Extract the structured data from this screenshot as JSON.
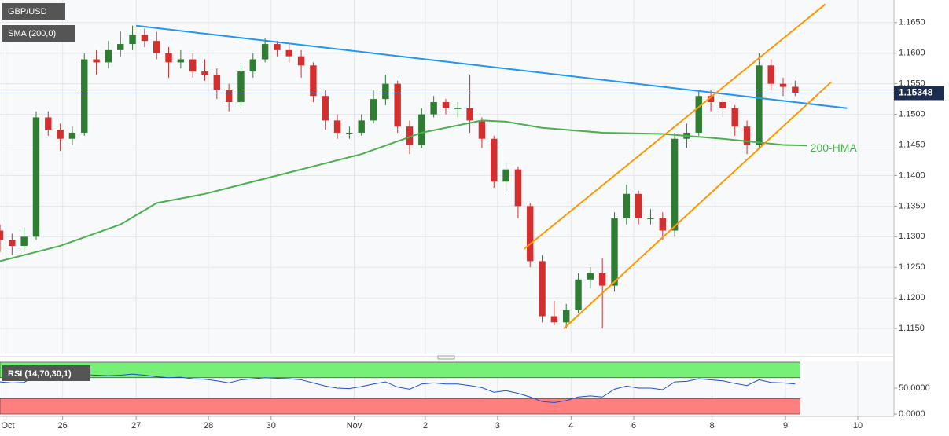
{
  "chart_data": [
    {
      "type": "candlestick",
      "symbol": "GBP/USD",
      "indicator_label": "SMA (200,0)",
      "up_color": "#2e7d32",
      "down_color": "#d32f2f",
      "xlim": [
        0,
        74.2
      ],
      "ylim": [
        1.1109,
        1.1687
      ],
      "xticks": [
        {
          "value": 0.5,
          "label": "Oct"
        },
        {
          "value": 5.2,
          "label": "26"
        },
        {
          "value": 11.3,
          "label": "27"
        },
        {
          "value": 17.3,
          "label": "28"
        },
        {
          "value": 22.5,
          "label": "30"
        },
        {
          "value": 29.4,
          "label": "Nov"
        },
        {
          "value": 35.3,
          "label": "2"
        },
        {
          "value": 41.3,
          "label": "3"
        },
        {
          "value": 47.4,
          "label": "4"
        },
        {
          "value": 52.6,
          "label": "6"
        },
        {
          "value": 59.1,
          "label": "8"
        },
        {
          "value": 65.2,
          "label": "9"
        },
        {
          "value": 71.2,
          "label": "10"
        }
      ],
      "yticks": [
        {
          "value": 1.115,
          "label": "1.1150"
        },
        {
          "value": 1.12,
          "label": "1.1200"
        },
        {
          "value": 1.125,
          "label": "1.1250"
        },
        {
          "value": 1.13,
          "label": "1.1300"
        },
        {
          "value": 1.135,
          "label": "1.1350"
        },
        {
          "value": 1.14,
          "label": "1.1400"
        },
        {
          "value": 1.145,
          "label": "1.1450"
        },
        {
          "value": 1.15,
          "label": "1.1500"
        },
        {
          "value": 1.155,
          "label": "1.1550"
        },
        {
          "value": 1.16,
          "label": "1.1600"
        },
        {
          "value": 1.165,
          "label": "1.1650"
        }
      ],
      "grid": true,
      "x": [
        0,
        1,
        2,
        3,
        4,
        5,
        6,
        7,
        8,
        9,
        10,
        11,
        12,
        13,
        14,
        15,
        16,
        17,
        18,
        19,
        20,
        21,
        22,
        23,
        24,
        25,
        26,
        27,
        28,
        29,
        30,
        31,
        32,
        33,
        34,
        35,
        36,
        37,
        38,
        39,
        40,
        41,
        42,
        43,
        44,
        45,
        46,
        47,
        48,
        49,
        50,
        51,
        52,
        53,
        54,
        55,
        56,
        57,
        58,
        59,
        60,
        61,
        62,
        63,
        64,
        65,
        66
      ],
      "open": [
        1.131,
        1.1295,
        1.1285,
        1.13,
        1.1495,
        1.1475,
        1.146,
        1.147,
        1.159,
        1.1585,
        1.1605,
        1.1615,
        1.163,
        1.162,
        1.16,
        1.1585,
        1.159,
        1.157,
        1.1565,
        1.154,
        1.152,
        1.157,
        1.159,
        1.1615,
        1.1605,
        1.1595,
        1.158,
        1.153,
        1.149,
        1.147,
        1.147,
        1.149,
        1.1525,
        1.155,
        1.148,
        1.145,
        1.15,
        1.152,
        1.151,
        1.151,
        1.149,
        1.146,
        1.139,
        1.141,
        1.135,
        1.126,
        1.117,
        1.116,
        1.118,
        1.123,
        1.124,
        1.122,
        1.133,
        1.137,
        1.133,
        1.133,
        1.131,
        1.146,
        1.147,
        1.153,
        1.152,
        1.151,
        1.148,
        1.145,
        1.158,
        1.155,
        1.1545
      ],
      "high": [
        1.132,
        1.1305,
        1.1315,
        1.1505,
        1.1505,
        1.1485,
        1.148,
        1.16,
        1.1605,
        1.162,
        1.1635,
        1.1645,
        1.164,
        1.1635,
        1.161,
        1.1605,
        1.16,
        1.159,
        1.1575,
        1.155,
        1.158,
        1.16,
        1.1625,
        1.162,
        1.1615,
        1.1605,
        1.1585,
        1.154,
        1.15,
        1.148,
        1.15,
        1.154,
        1.1565,
        1.1555,
        1.149,
        1.151,
        1.153,
        1.1525,
        1.152,
        1.1565,
        1.1495,
        1.1465,
        1.142,
        1.1415,
        1.1355,
        1.127,
        1.1195,
        1.119,
        1.124,
        1.125,
        1.1265,
        1.134,
        1.1385,
        1.1375,
        1.1345,
        1.134,
        1.147,
        1.1485,
        1.154,
        1.154,
        1.153,
        1.1515,
        1.149,
        1.16,
        1.159,
        1.156,
        1.1555
      ],
      "low": [
        1.1275,
        1.127,
        1.1275,
        1.1295,
        1.1465,
        1.144,
        1.145,
        1.1465,
        1.1565,
        1.1575,
        1.1595,
        1.1605,
        1.161,
        1.159,
        1.156,
        1.1575,
        1.156,
        1.1555,
        1.1525,
        1.1505,
        1.151,
        1.156,
        1.1585,
        1.1595,
        1.1585,
        1.156,
        1.152,
        1.1475,
        1.146,
        1.146,
        1.1465,
        1.1485,
        1.1515,
        1.147,
        1.1435,
        1.1445,
        1.1495,
        1.15,
        1.1495,
        1.147,
        1.1445,
        1.138,
        1.1375,
        1.133,
        1.125,
        1.116,
        1.1155,
        1.115,
        1.1175,
        1.1215,
        1.115,
        1.121,
        1.132,
        1.132,
        1.132,
        1.1295,
        1.13,
        1.1445,
        1.1465,
        1.1505,
        1.1495,
        1.1465,
        1.1435,
        1.1445,
        1.154,
        1.153,
        1.153
      ],
      "close": [
        1.1295,
        1.1285,
        1.13,
        1.1495,
        1.1475,
        1.146,
        1.147,
        1.159,
        1.1585,
        1.1605,
        1.1615,
        1.163,
        1.162,
        1.16,
        1.1585,
        1.159,
        1.157,
        1.1565,
        1.154,
        1.152,
        1.157,
        1.159,
        1.1615,
        1.1605,
        1.1595,
        1.158,
        1.153,
        1.149,
        1.147,
        1.147,
        1.149,
        1.1525,
        1.155,
        1.148,
        1.145,
        1.15,
        1.152,
        1.151,
        1.151,
        1.149,
        1.146,
        1.139,
        1.141,
        1.135,
        1.126,
        1.117,
        1.116,
        1.118,
        1.123,
        1.124,
        1.122,
        1.133,
        1.137,
        1.133,
        1.133,
        1.131,
        1.146,
        1.147,
        1.153,
        1.152,
        1.151,
        1.148,
        1.145,
        1.158,
        1.155,
        1.1545,
        1.1535
      ],
      "series": [
        {
          "name": "200-HMA",
          "color": "#4caf50",
          "x": [
            0,
            5,
            10,
            13,
            17,
            20,
            25,
            30,
            35,
            38,
            40,
            42,
            45,
            50,
            55,
            60,
            65,
            67
          ],
          "values": [
            1.126,
            1.1285,
            1.132,
            1.1355,
            1.137,
            1.1385,
            1.141,
            1.1435,
            1.147,
            1.1482,
            1.149,
            1.1488,
            1.1478,
            1.147,
            1.1468,
            1.146,
            1.145,
            1.1449
          ]
        }
      ],
      "lines": [
        {
          "color": "#2196f3",
          "x": [
            11.3,
            70.3
          ],
          "y": [
            1.1645,
            1.151
          ]
        },
        {
          "color": "#ff9800",
          "x": [
            43.5,
            68.5
          ],
          "y": [
            1.128,
            1.168
          ]
        },
        {
          "color": "#ff9800",
          "x": [
            46.8,
            69.0
          ],
          "y": [
            1.115,
            1.1553
          ]
        }
      ],
      "last": {
        "value": 1.15348,
        "label": "1.15348"
      }
    },
    {
      "type": "line",
      "title": "RSI (14,70,30,1)",
      "color": "#1e50c8",
      "xlim": [
        0,
        74.2
      ],
      "ylim": [
        -4.5,
        101.5
      ],
      "yticks": [
        {
          "value": 0,
          "label": "0.0000"
        },
        {
          "value": 50,
          "label": "50.0000"
        }
      ],
      "bands": [
        {
          "from": 70,
          "to": 100,
          "color": "#76f076"
        },
        {
          "from": 0,
          "to": 30,
          "color": "#ff7f7f"
        }
      ],
      "x": [
        0,
        1,
        2,
        3,
        4,
        5,
        6,
        7,
        8,
        9,
        10,
        11,
        12,
        13,
        14,
        15,
        16,
        17,
        18,
        19,
        20,
        21,
        22,
        23,
        24,
        25,
        26,
        27,
        28,
        29,
        30,
        31,
        32,
        33,
        34,
        35,
        36,
        37,
        38,
        39,
        40,
        41,
        42,
        43,
        44,
        45,
        46,
        47,
        48,
        49,
        50,
        51,
        52,
        53,
        54,
        55,
        56,
        57,
        58,
        59,
        60,
        61,
        62,
        63,
        64,
        65,
        66
      ],
      "values": [
        62,
        60,
        61,
        74,
        72,
        70,
        71,
        76,
        75,
        74,
        75,
        77,
        75,
        72,
        70,
        71,
        68,
        67,
        64,
        60,
        66,
        68,
        70,
        69,
        68,
        66,
        60,
        54,
        50,
        49,
        53,
        58,
        62,
        52,
        48,
        58,
        60,
        58,
        58,
        55,
        51,
        42,
        45,
        40,
        33,
        24,
        22,
        26,
        33,
        35,
        33,
        48,
        54,
        50,
        50,
        47,
        62,
        63,
        68,
        66,
        64,
        59,
        55,
        66,
        61,
        60,
        58
      ]
    }
  ]
}
